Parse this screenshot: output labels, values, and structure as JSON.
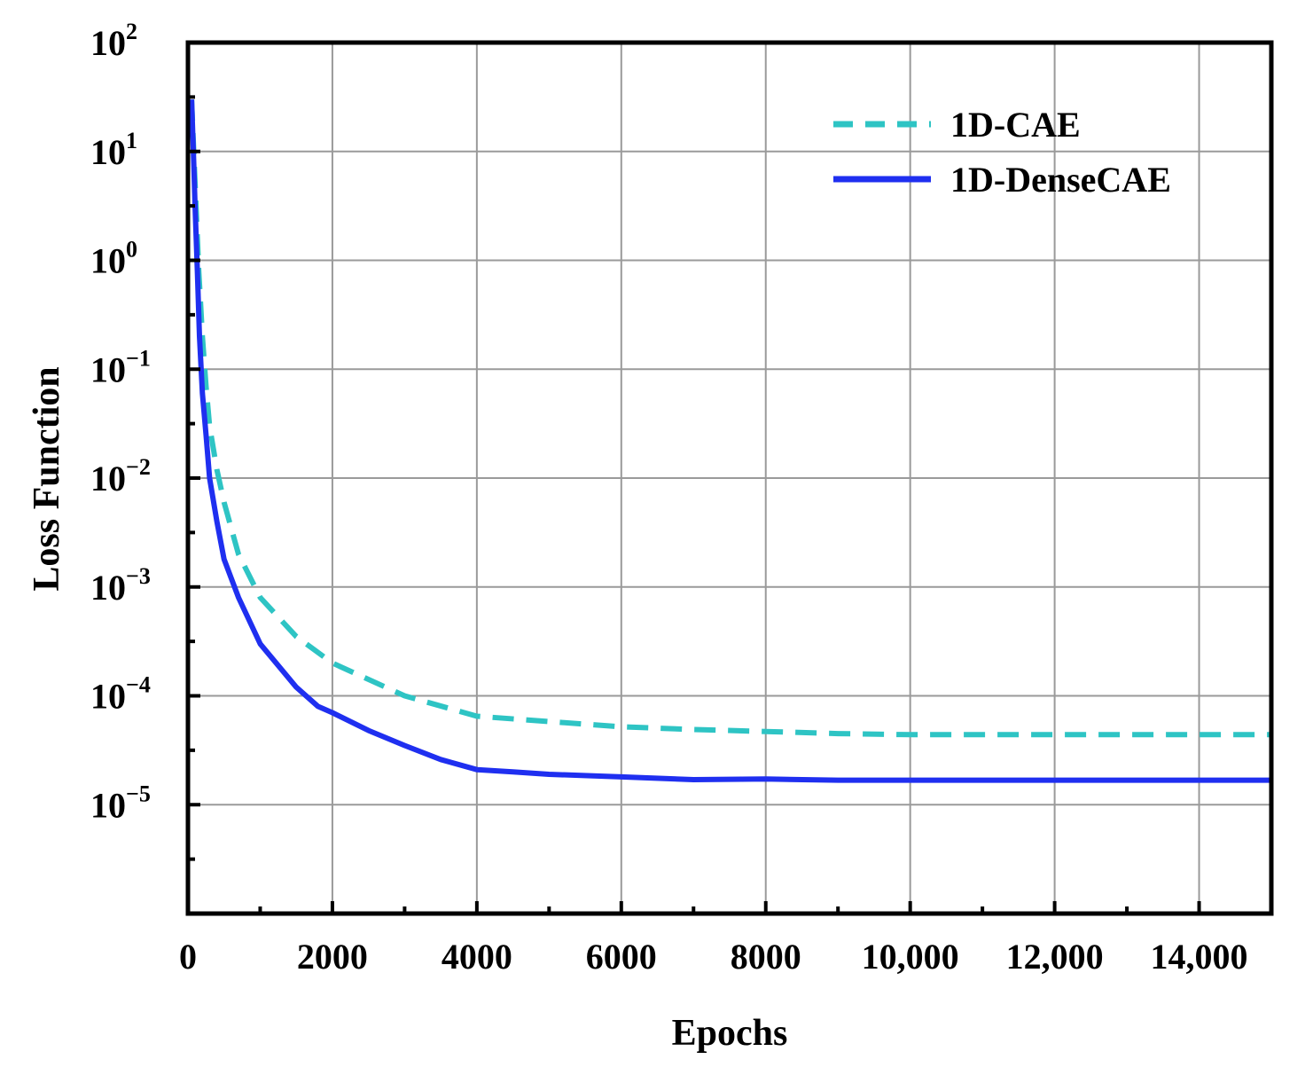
{
  "chart_data": {
    "type": "line",
    "xlabel": "Epochs",
    "ylabel": "Loss Function",
    "xlim": [
      0,
      15000
    ],
    "ylim_log10": [
      -6,
      2
    ],
    "y_scale": "log",
    "grid": true,
    "legend_position": "top-right",
    "x_ticks": [
      0,
      2000,
      4000,
      6000,
      8000,
      10000,
      12000,
      14000
    ],
    "x_tick_labels": [
      "0",
      "2000",
      "4000",
      "6000",
      "8000",
      "10,000",
      "12,000",
      "14,000"
    ],
    "y_ticks": [
      {
        "exp": 2,
        "base": "10",
        "sup": "2"
      },
      {
        "exp": 1,
        "base": "10",
        "sup": "1"
      },
      {
        "exp": 0,
        "base": "10",
        "sup": "0"
      },
      {
        "exp": -1,
        "base": "10",
        "sup": "−1"
      },
      {
        "exp": -2,
        "base": "10",
        "sup": "−2"
      },
      {
        "exp": -3,
        "base": "10",
        "sup": "−3"
      },
      {
        "exp": -4,
        "base": "10",
        "sup": "−4"
      },
      {
        "exp": -5,
        "base": "10",
        "sup": "−5"
      }
    ],
    "series": [
      {
        "name": "1D-CAE",
        "color": "#2ec4c4",
        "style": "dashed",
        "x": [
          50,
          100,
          150,
          200,
          250,
          300,
          400,
          500,
          700,
          1000,
          1500,
          2000,
          3000,
          4000,
          5000,
          6000,
          7000,
          8000,
          9000,
          10000,
          11000,
          12000,
          13000,
          14000,
          15000
        ],
        "y": [
          30,
          5,
          0.8,
          0.2,
          0.07,
          0.03,
          0.012,
          0.006,
          0.002,
          0.0008,
          0.00035,
          0.0002,
          0.0001,
          6.5e-05,
          5.8e-05,
          5.2e-05,
          4.9e-05,
          4.7e-05,
          4.5e-05,
          4.4e-05,
          4.4e-05,
          4.4e-05,
          4.4e-05,
          4.4e-05,
          4.4e-05
        ]
      },
      {
        "name": "1D-DenseCAE",
        "color": "#1f2ff0",
        "style": "solid",
        "x": [
          50,
          80,
          100,
          130,
          160,
          200,
          250,
          300,
          400,
          500,
          700,
          1000,
          1500,
          1800,
          2000,
          2500,
          3000,
          3500,
          4000,
          4500,
          5000,
          6000,
          7000,
          8000,
          9000,
          10000,
          11000,
          12000,
          13000,
          14000,
          15000
        ],
        "y": [
          30,
          8,
          3,
          0.8,
          0.2,
          0.06,
          0.025,
          0.01,
          0.004,
          0.0018,
          0.0008,
          0.0003,
          0.00012,
          8e-05,
          7e-05,
          4.8e-05,
          3.5e-05,
          2.6e-05,
          2.1e-05,
          2e-05,
          1.9e-05,
          1.8e-05,
          1.7e-05,
          1.72e-05,
          1.68e-05,
          1.68e-05,
          1.68e-05,
          1.68e-05,
          1.68e-05,
          1.68e-05,
          1.68e-05
        ]
      }
    ]
  }
}
